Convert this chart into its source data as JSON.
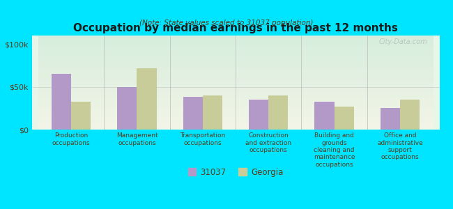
{
  "title": "Occupation by median earnings in the past 12 months",
  "subtitle": "(Note: State values scaled to 31037 population)",
  "categories": [
    "Production\noccupations",
    "Management\noccupations",
    "Transportation\noccupations",
    "Construction\nand extraction\noccupations",
    "Building and\ngrounds\ncleaning and\nmaintenance\noccupations",
    "Office and\nadministrative\nsupport\noccupations"
  ],
  "values_31037": [
    65000,
    50000,
    38000,
    35000,
    33000,
    25000
  ],
  "values_georgia": [
    33000,
    72000,
    40000,
    40000,
    27000,
    35000
  ],
  "color_31037": "#b399c8",
  "color_georgia": "#c8cc99",
  "background_color": "#00e5ff",
  "plot_bg_top": "#e8f5e9",
  "plot_bg_bottom": "#f5f5dc",
  "ylim": [
    0,
    110000
  ],
  "yticks": [
    0,
    50000,
    100000
  ],
  "ytick_labels": [
    "$0",
    "$50k",
    "$100k"
  ],
  "legend_31037": "31037",
  "legend_georgia": "Georgia",
  "watermark": "City-Data.com"
}
